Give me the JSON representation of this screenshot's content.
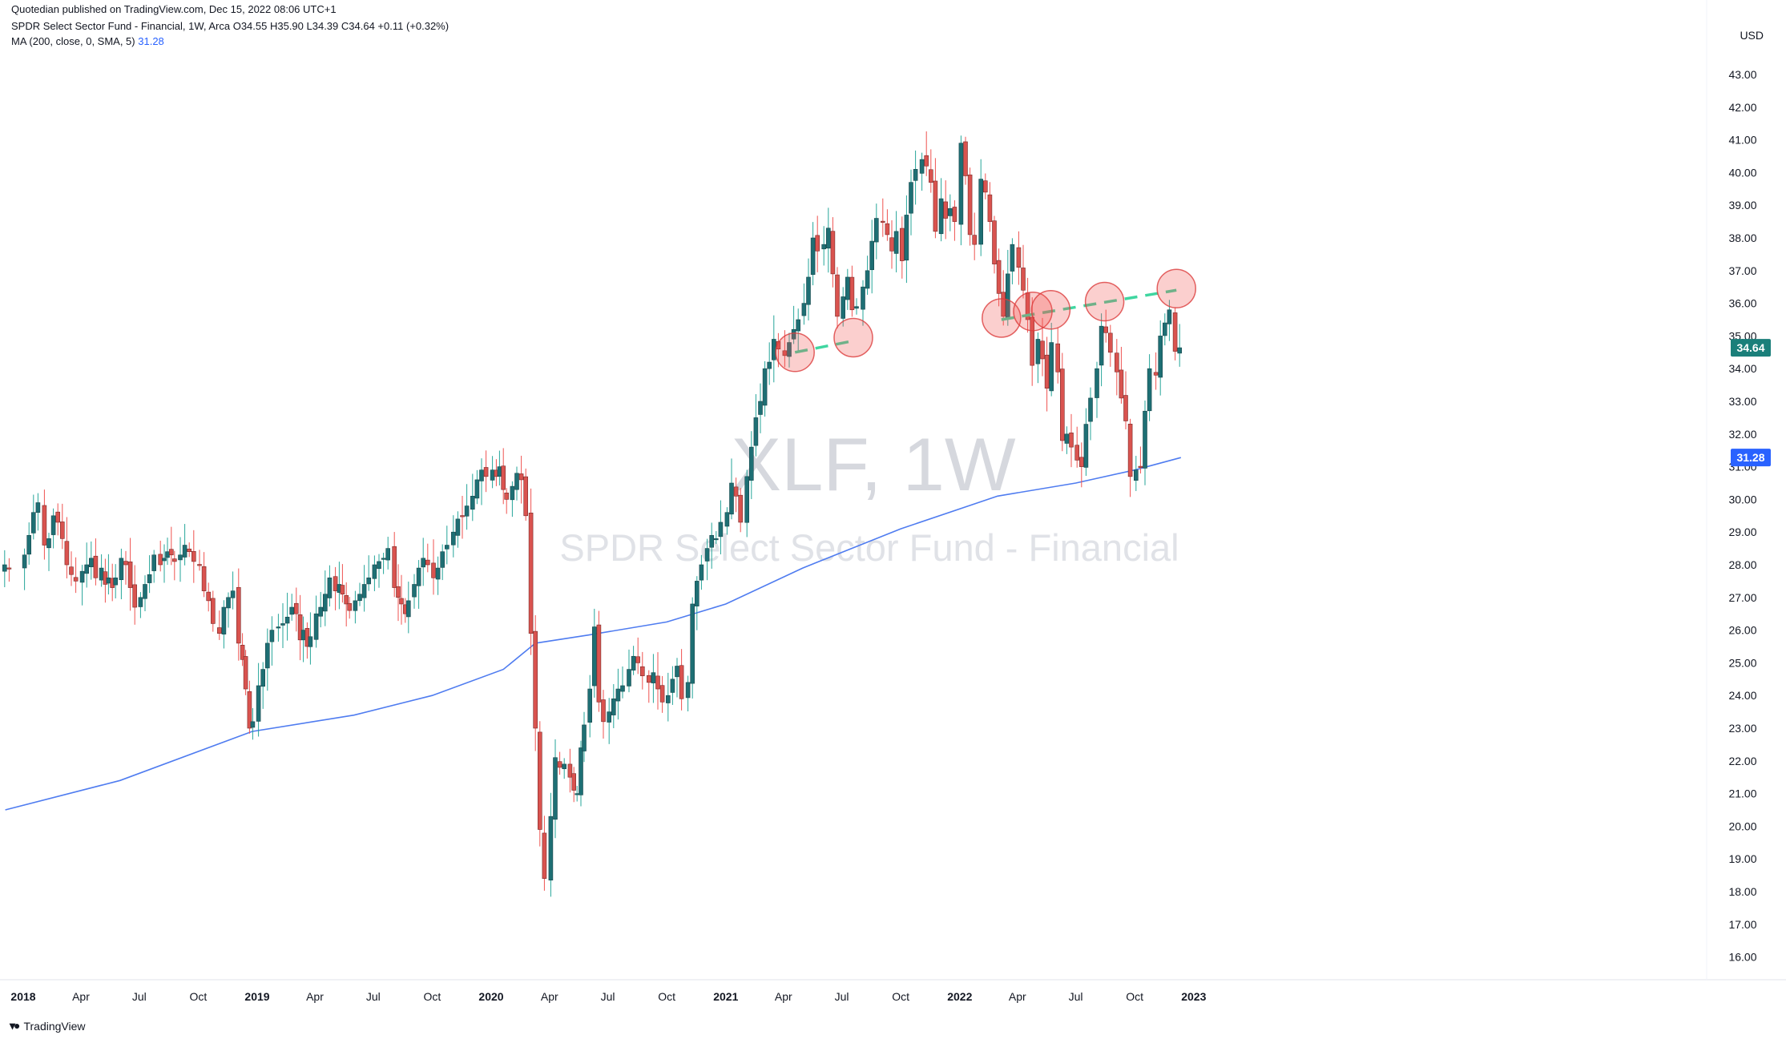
{
  "header": {
    "published_line": "Quotedian published on TradingView.com, Dec 15, 2022 08:06 UTC+1",
    "symbol_line": "SPDR Select Sector Fund - Financial, 1W, Arca  O34.55  H35.90  L34.39  C34.64  +0.11 (+0.32%)",
    "ma_label": "MA (200, close, 0, SMA, 5)",
    "ma_value": "31.28"
  },
  "currency": "USD",
  "watermark": {
    "symbol": "XLF, 1W",
    "name": "SPDR Select Sector Fund - Financial"
  },
  "footer": {
    "logo_text": "TradingView"
  },
  "colors": {
    "up": "#26a69a",
    "down": "#ef5350",
    "up_candle": "#1e6f74",
    "down_candle": "#d9534f",
    "ma": "#4f7cf0",
    "neckline": "#3fd6a0",
    "price_label": "#1a7f7a",
    "ma_label": "#2962ff"
  },
  "chart_data": {
    "type": "candlestick",
    "title": "SPDR Select Sector Fund - Financial",
    "interval": "1W",
    "y_axis": {
      "scale": "linear",
      "ylim": [
        15.3,
        43.9
      ],
      "ticks": [
        "43.00",
        "42.00",
        "41.00",
        "40.00",
        "39.00",
        "38.00",
        "37.00",
        "36.00",
        "35.00",
        "34.00",
        "33.00",
        "32.00",
        "31.00",
        "30.00",
        "29.00",
        "28.00",
        "27.00",
        "26.00",
        "25.00",
        "24.00",
        "23.00",
        "22.00",
        "21.00",
        "20.00",
        "19.00",
        "18.00",
        "17.00",
        "16.00"
      ]
    },
    "x_axis": {
      "ticks": [
        {
          "label": "2018",
          "date": "2018-01-01",
          "year": true
        },
        {
          "label": "Apr",
          "date": "2018-04-01"
        },
        {
          "label": "Jul",
          "date": "2018-07-01"
        },
        {
          "label": "Oct",
          "date": "2018-10-01"
        },
        {
          "label": "2019",
          "date": "2019-01-01",
          "year": true
        },
        {
          "label": "Apr",
          "date": "2019-04-01"
        },
        {
          "label": "Jul",
          "date": "2019-07-01"
        },
        {
          "label": "Oct",
          "date": "2019-10-01"
        },
        {
          "label": "2020",
          "date": "2020-01-01",
          "year": true
        },
        {
          "label": "Apr",
          "date": "2020-04-01"
        },
        {
          "label": "Jul",
          "date": "2020-07-01"
        },
        {
          "label": "Oct",
          "date": "2020-10-01"
        },
        {
          "label": "2021",
          "date": "2021-01-01",
          "year": true
        },
        {
          "label": "Apr",
          "date": "2021-04-01"
        },
        {
          "label": "Jul",
          "date": "2021-07-01"
        },
        {
          "label": "Oct",
          "date": "2021-10-01"
        },
        {
          "label": "2022",
          "date": "2022-01-01",
          "year": true
        },
        {
          "label": "Apr",
          "date": "2022-04-01"
        },
        {
          "label": "Jul",
          "date": "2022-07-01"
        },
        {
          "label": "Oct",
          "date": "2022-10-01"
        },
        {
          "label": "2023",
          "date": "2023-01-01",
          "year": true
        }
      ]
    },
    "weekly_closes": {
      "2017-12": [
        28.0,
        27.9
      ],
      "2018-01": [
        28.3,
        28.9,
        29.6,
        29.9
      ],
      "2018-02": [
        28.6,
        28.8,
        29.5,
        29.3
      ],
      "2018-03": [
        28.8,
        28.0,
        27.7,
        27.5
      ],
      "2018-04": [
        27.8,
        28.0,
        28.2,
        27.6
      ],
      "2018-05": [
        27.9,
        27.4,
        27.6,
        27.3,
        27.6
      ],
      "2018-06": [
        28.2,
        28.0,
        27.3,
        26.7
      ],
      "2018-07": [
        27.0,
        27.4,
        27.7,
        28.3
      ],
      "2018-08": [
        28.0,
        28.2,
        28.4,
        28.3,
        28.1
      ],
      "2018-09": [
        28.3,
        28.6,
        28.4,
        28.1
      ],
      "2018-10": [
        28.0,
        27.2,
        26.9,
        26.2
      ],
      "2018-11": [
        25.9,
        26.7,
        27.0,
        27.2
      ],
      "2018-12": [
        25.6,
        25.1,
        24.2,
        23.0,
        23.2
      ],
      "2019-01": [
        24.3,
        24.8,
        25.6,
        26.0
      ],
      "2019-02": [
        26.1,
        26.2,
        26.4,
        26.7
      ],
      "2019-03": [
        26.5,
        25.7,
        26.0,
        25.5,
        25.8
      ],
      "2019-04": [
        26.5,
        26.7,
        27.1,
        27.6
      ],
      "2019-05": [
        27.2,
        27.4,
        27.1,
        26.8,
        26.6
      ],
      "2019-06": [
        26.9,
        27.1,
        27.4,
        27.6
      ],
      "2019-07": [
        28.0,
        28.1,
        28.2,
        28.5
      ],
      "2019-08": [
        27.3,
        27.0,
        26.8,
        26.5,
        26.9
      ],
      "2019-09": [
        27.4,
        27.9,
        28.2,
        28.0
      ],
      "2019-10": [
        27.6,
        27.9,
        28.4,
        28.6
      ],
      "2019-11": [
        29.0,
        29.4,
        29.5,
        29.8
      ],
      "2019-12": [
        30.1,
        30.6,
        30.9,
        30.7
      ],
      "2020-01": [
        30.9,
        30.7,
        31.0,
        30.3,
        30.0
      ],
      "2020-02": [
        30.4,
        30.8,
        30.6,
        29.5
      ],
      "2020-03": [
        25.9,
        23.0,
        19.9,
        18.4
      ],
      "2020-04": [
        20.3,
        22.1,
        21.8,
        21.9
      ],
      "2020-05": [
        21.5,
        21.1,
        21.0,
        22.4,
        23.1
      ],
      "2020-06": [
        24.2,
        26.1,
        23.8,
        23.2
      ],
      "2020-07": [
        23.5,
        23.9,
        24.2,
        24.3
      ],
      "2020-08": [
        24.8,
        25.2,
        25.0,
        24.6
      ],
      "2020-09": [
        24.4,
        24.7,
        24.2,
        23.8
      ],
      "2020-10": [
        24.0,
        24.5,
        24.9,
        23.9
      ],
      "2020-11": [
        24.4,
        26.8,
        27.5,
        28.0
      ],
      "2020-12": [
        28.5,
        28.9,
        28.8,
        29.3
      ],
      "2021-01": [
        29.6,
        30.5,
        30.1,
        29.3
      ],
      "2021-02": [
        30.7,
        31.6,
        32.5,
        33.0
      ],
      "2021-03": [
        34.0,
        34.2,
        34.9,
        34.6
      ],
      "2021-04": [
        34.4,
        34.8,
        35.2,
        35.5
      ],
      "2021-05": [
        36.0,
        36.8,
        38.0,
        37.6
      ],
      "2021-06": [
        37.8,
        38.3,
        36.9,
        35.6
      ],
      "2021-07": [
        36.2,
        36.8,
        35.8,
        35.9
      ],
      "2021-08": [
        36.5,
        37.0,
        37.9,
        38.6
      ],
      "2021-09": [
        38.5,
        38.1,
        37.6,
        38.2
      ],
      "2021-10": [
        37.3,
        38.7,
        39.7,
        40.1
      ],
      "2021-11": [
        40.4,
        40.2,
        39.7,
        38.2
      ],
      "2021-12": [
        39.2,
        38.6,
        38.9,
        38.5
      ],
      "2022-01": [
        40.9,
        39.9,
        38.1,
        37.8
      ],
      "2022-02": [
        39.8,
        39.4,
        38.5,
        37.2
      ],
      "2022-03": [
        36.3,
        35.6,
        36.9,
        37.8
      ],
      "2022-04": [
        37.1,
        36.4,
        35.5,
        34.1
      ],
      "2022-05": [
        34.9,
        34.3,
        33.4,
        34.8
      ],
      "2022-06": [
        33.9,
        31.8,
        32.0,
        31.6
      ],
      "2022-07": [
        31.2,
        31.0,
        32.3,
        33.1
      ],
      "2022-08": [
        34.0,
        35.3,
        35.1,
        34.5
      ],
      "2022-09": [
        33.9,
        33.1,
        32.4,
        30.7
      ],
      "2022-10": [
        30.9,
        31.0,
        32.7,
        34.0
      ],
      "2022-11": [
        33.8,
        35.0,
        35.4,
        35.8
      ],
      "2022-12": [
        34.53,
        34.64
      ]
    },
    "ma200": {
      "label": "MA (200, close, 0, SMA, 5)",
      "points": [
        {
          "date": "2017-12-04",
          "value": 20.5
        },
        {
          "date": "2018-06-01",
          "value": 21.4
        },
        {
          "date": "2018-12-24",
          "value": 22.9
        },
        {
          "date": "2019-06-01",
          "value": 23.4
        },
        {
          "date": "2019-10-01",
          "value": 24.0
        },
        {
          "date": "2020-01-20",
          "value": 24.8
        },
        {
          "date": "2020-03-10",
          "value": 25.6
        },
        {
          "date": "2020-06-01",
          "value": 25.85
        },
        {
          "date": "2020-10-01",
          "value": 26.25
        },
        {
          "date": "2021-01-01",
          "value": 26.8
        },
        {
          "date": "2021-05-01",
          "value": 27.9
        },
        {
          "date": "2021-10-01",
          "value": 29.1
        },
        {
          "date": "2022-03-01",
          "value": 30.1
        },
        {
          "date": "2022-07-01",
          "value": 30.5
        },
        {
          "date": "2022-10-01",
          "value": 30.9
        },
        {
          "date": "2022-12-12",
          "value": 31.28
        }
      ]
    },
    "neckline": [
      {
        "from": {
          "date": "2021-04-19",
          "value": 34.5
        },
        "to": {
          "date": "2021-07-19",
          "value": 34.85
        }
      },
      {
        "from": {
          "date": "2022-03-07",
          "value": 35.5
        },
        "to": {
          "date": "2022-12-05",
          "value": 36.4
        }
      }
    ],
    "highlights": [
      {
        "date": "2021-04-19",
        "value": 34.5
      },
      {
        "date": "2021-07-19",
        "value": 34.95
      },
      {
        "date": "2022-03-07",
        "value": 35.55
      },
      {
        "date": "2022-04-25",
        "value": 35.75
      },
      {
        "date": "2022-05-23",
        "value": 35.8
      },
      {
        "date": "2022-08-15",
        "value": 36.05
      },
      {
        "date": "2022-12-05",
        "value": 36.45
      }
    ],
    "price_labels": [
      {
        "value": 34.64,
        "text": "34.64",
        "kind": "last"
      },
      {
        "value": 31.28,
        "text": "31.28",
        "kind": "ma"
      }
    ]
  }
}
